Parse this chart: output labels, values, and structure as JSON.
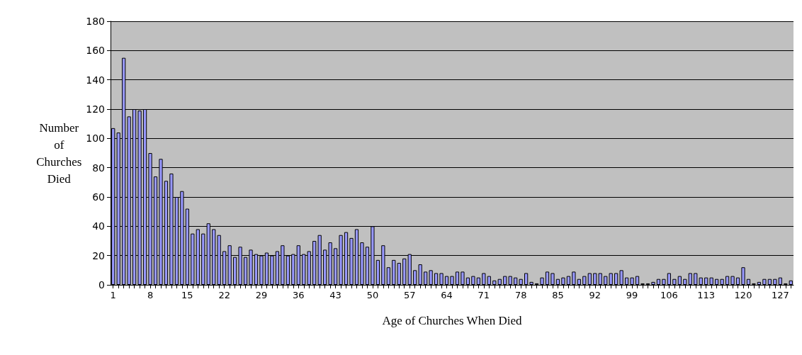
{
  "chart_data": {
    "type": "bar",
    "xlabel": "Age of Churches When Died",
    "ylabel": "Number of Churches Died",
    "categories": [
      "1",
      null,
      null,
      null,
      null,
      null,
      null,
      "8",
      null,
      null,
      null,
      null,
      null,
      null,
      "15",
      null,
      null,
      null,
      null,
      null,
      null,
      "22",
      null,
      null,
      null,
      null,
      null,
      null,
      "29",
      null,
      null,
      null,
      null,
      null,
      null,
      "36",
      null,
      null,
      null,
      null,
      null,
      null,
      "43",
      null,
      null,
      null,
      null,
      null,
      null,
      "50",
      null,
      null,
      null,
      null,
      null,
      null,
      "57",
      null,
      null,
      null,
      null,
      null,
      null,
      "64",
      null,
      null,
      null,
      null,
      null,
      null,
      "71",
      null,
      null,
      null,
      null,
      null,
      null,
      "78",
      null,
      null,
      null,
      null,
      null,
      null,
      "85",
      null,
      null,
      null,
      null,
      null,
      null,
      "92",
      null,
      null,
      null,
      null,
      null,
      null,
      "99",
      null,
      null,
      null,
      null,
      null,
      null,
      "106",
      null,
      null,
      null,
      null,
      null,
      null,
      "113",
      null,
      null,
      null,
      null,
      null,
      null,
      "120",
      null,
      null,
      null,
      null,
      null,
      null,
      "127",
      null,
      null
    ],
    "values": [
      107,
      104,
      155,
      115,
      120,
      119,
      120,
      90,
      74,
      86,
      71,
      76,
      60,
      64,
      52,
      35,
      38,
      35,
      42,
      38,
      34,
      23,
      27,
      19,
      26,
      19,
      24,
      21,
      20,
      22,
      20,
      23,
      27,
      20,
      21,
      27,
      21,
      23,
      30,
      34,
      24,
      29,
      25,
      34,
      36,
      32,
      38,
      29,
      26,
      40,
      17,
      27,
      12,
      17,
      15,
      18,
      21,
      10,
      14,
      9,
      10,
      8,
      8,
      6,
      6,
      9,
      9,
      5,
      6,
      5,
      8,
      6,
      3,
      4,
      6,
      6,
      5,
      4,
      8,
      2,
      1,
      5,
      9,
      8,
      4,
      5,
      6,
      9,
      4,
      6,
      8,
      8,
      8,
      6,
      8,
      8,
      10,
      5,
      5,
      6,
      1,
      1,
      2,
      4,
      4,
      8,
      4,
      6,
      4,
      8,
      8,
      5,
      5,
      5,
      4,
      4,
      6,
      6,
      5,
      12,
      4,
      1,
      2,
      4,
      4,
      4,
      5,
      1,
      3
    ],
    "color": "#9999ff",
    "ylim": [
      0,
      180
    ],
    "yticks": [
      0,
      20,
      40,
      60,
      80,
      100,
      120,
      140,
      160,
      180
    ],
    "grid": "y"
  }
}
